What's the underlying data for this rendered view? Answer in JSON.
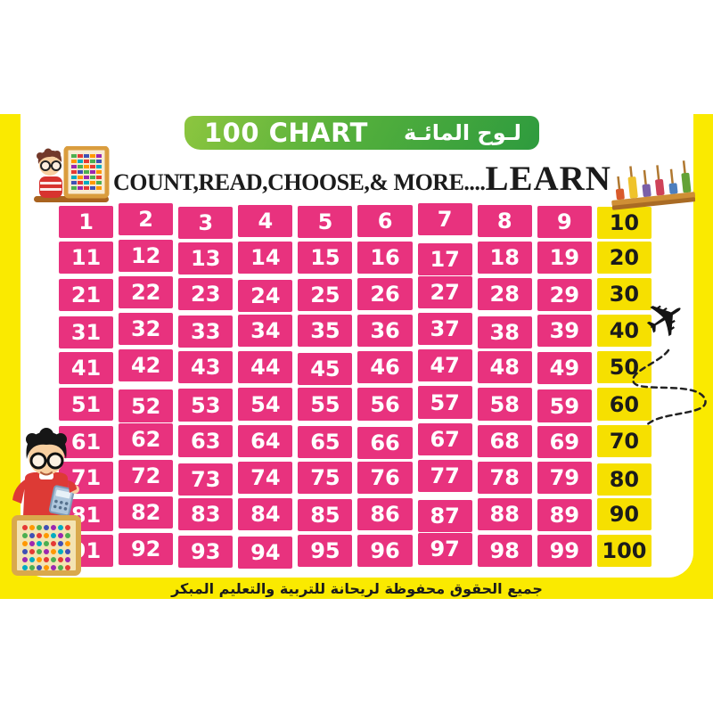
{
  "banner": {
    "title_en": "100 CHART",
    "title_ar": "لـوح المائـة"
  },
  "subtitle": {
    "lead": "COUNT,READ,CHOOSE,& MORE....",
    "emphasis": "LEARN"
  },
  "footer": {
    "text_ar": "جميع الحقوق محفوظة لريحانة للتربية والتعليم المبكر"
  },
  "colors": {
    "pink": "#E8327E",
    "cell_yellow": "#F6E000",
    "frame_yellow": "#FAEA00",
    "green_light": "#8DC63F",
    "green_mid": "#55B03C",
    "green_dark": "#2E9B3E",
    "ink": "#1B1B1B"
  },
  "icons": {
    "top_left": "boy-with-abacus",
    "top_right": "peg-counting-toy",
    "right": "airplane-with-dashed-flight-path",
    "bottom_left": "boy-with-calculator-and-abacus"
  },
  "chart_data": {
    "type": "table",
    "title": "100 CHART",
    "note": "hundred chart; multiples of 10 in yellow cells with black digits, all other numbers pink cells with white digits",
    "rows": [
      [
        1,
        2,
        3,
        4,
        5,
        6,
        7,
        8,
        9,
        10
      ],
      [
        11,
        12,
        13,
        14,
        15,
        16,
        17,
        18,
        19,
        20
      ],
      [
        21,
        22,
        23,
        24,
        25,
        26,
        27,
        28,
        29,
        30
      ],
      [
        31,
        32,
        33,
        34,
        35,
        36,
        37,
        38,
        39,
        40
      ],
      [
        41,
        42,
        43,
        44,
        45,
        46,
        47,
        48,
        49,
        50
      ],
      [
        51,
        52,
        53,
        54,
        55,
        56,
        57,
        58,
        59,
        60
      ],
      [
        61,
        62,
        63,
        64,
        65,
        66,
        67,
        68,
        69,
        70
      ],
      [
        71,
        72,
        73,
        74,
        75,
        76,
        77,
        78,
        79,
        80
      ],
      [
        81,
        82,
        83,
        84,
        85,
        86,
        87,
        88,
        89,
        90
      ],
      [
        91,
        92,
        93,
        94,
        95,
        96,
        97,
        98,
        99,
        100
      ]
    ]
  }
}
